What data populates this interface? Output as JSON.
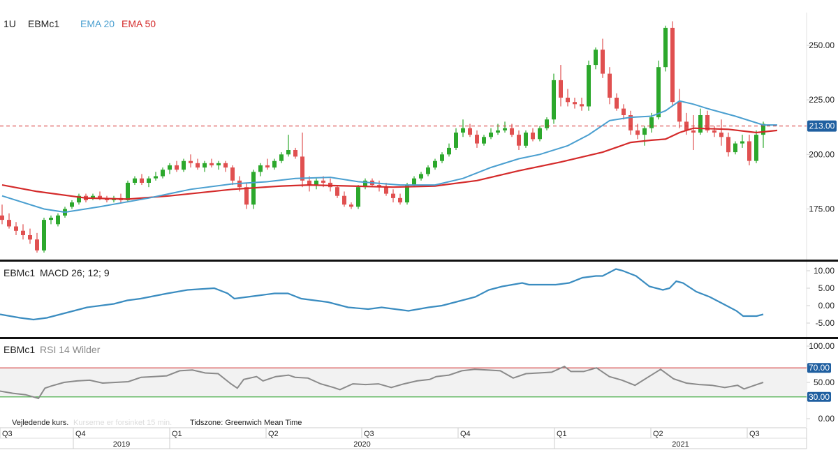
{
  "colors": {
    "up": "#2ca82c",
    "down": "#e05050",
    "ema20": "#4a9fd0",
    "ema50": "#d42a2a",
    "macd": "#3a8cc0",
    "rsi": "#8a8a8a",
    "rsi_upper": "#d44040",
    "rsi_lower": "#3aa83a",
    "last_price": "#1f5fa0"
  },
  "chart_data": [
    {
      "type": "candlestick",
      "interval_label": "1U",
      "symbol": "EBMc1",
      "legend": [
        {
          "label": "EMA 20",
          "color": "#4a9fd0"
        },
        {
          "label": "EMA 50",
          "color": "#d42a2a"
        }
      ],
      "ylim": [
        155,
        265
      ],
      "yticks": [
        "175.00",
        "200.00",
        "225.00",
        "250.00"
      ],
      "last_price_label": "213.00",
      "last_price": 213,
      "candles": [
        [
          172.0,
          177.0,
          168.0,
          170.0
        ],
        [
          170.0,
          173.0,
          166.0,
          167.0
        ],
        [
          167.0,
          169.0,
          163.0,
          165.0
        ],
        [
          165.0,
          168.0,
          161.0,
          163.0
        ],
        [
          163.0,
          166.0,
          159.0,
          161.0
        ],
        [
          161.0,
          164.0,
          155.0,
          156.0
        ],
        [
          156.0,
          171.0,
          155.0,
          170.0
        ],
        [
          170.0,
          172.0,
          168.0,
          171.0
        ],
        [
          168.0,
          173.0,
          167.0,
          172.0
        ],
        [
          172.0,
          176.0,
          171.0,
          175.0
        ],
        [
          176.0,
          179.0,
          175.0,
          178.0
        ],
        [
          178.0,
          182.0,
          177.0,
          181.0
        ],
        [
          181.0,
          182.0,
          178.0,
          179.0
        ],
        [
          180.0,
          182.0,
          179.0,
          181.0
        ],
        [
          181.0,
          183.0,
          179.0,
          180.0
        ],
        [
          180.0,
          181.0,
          178.0,
          179.0
        ],
        [
          179.0,
          181.0,
          178.0,
          180.0
        ],
        [
          180.0,
          182.0,
          178.0,
          179.0
        ],
        [
          179.0,
          188.0,
          178.0,
          187.0
        ],
        [
          187.0,
          190.0,
          186.0,
          189.0
        ],
        [
          189.0,
          191.0,
          186.0,
          187.0
        ],
        [
          187.0,
          190.0,
          185.0,
          189.0
        ],
        [
          189.0,
          192.0,
          188.0,
          190.0
        ],
        [
          190.0,
          194.0,
          189.0,
          193.0
        ],
        [
          193.0,
          196.0,
          191.0,
          195.0
        ],
        [
          195.0,
          197.0,
          192.0,
          193.0
        ],
        [
          193.0,
          198.0,
          192.0,
          197.0
        ],
        [
          197.0,
          200.0,
          194.0,
          196.0
        ],
        [
          196.0,
          198.0,
          193.0,
          194.0
        ],
        [
          194.0,
          197.0,
          192.0,
          196.0
        ],
        [
          196.0,
          198.0,
          194.0,
          195.0
        ],
        [
          195.0,
          197.0,
          193.0,
          196.0
        ],
        [
          196.0,
          197.0,
          192.0,
          194.0
        ],
        [
          194.0,
          195.0,
          186.0,
          188.0
        ],
        [
          188.0,
          190.0,
          183.0,
          185.0
        ],
        [
          185.0,
          187.0,
          175.0,
          177.0
        ],
        [
          177.0,
          193.0,
          175.0,
          192.0
        ],
        [
          192.0,
          196.0,
          190.0,
          195.0
        ],
        [
          195.0,
          198.0,
          193.0,
          194.0
        ],
        [
          194.0,
          198.0,
          193.0,
          197.0
        ],
        [
          197.0,
          201.0,
          196.0,
          200.0
        ],
        [
          200.0,
          209.0,
          199.0,
          202.0
        ],
        [
          202.0,
          203.0,
          198.0,
          199.0
        ],
        [
          199.0,
          210.0,
          185.0,
          188.0
        ],
        [
          188.0,
          190.0,
          183.0,
          186.0
        ],
        [
          186.0,
          189.0,
          184.0,
          188.0
        ],
        [
          188.0,
          190.0,
          185.0,
          187.0
        ],
        [
          187.0,
          189.0,
          183.0,
          185.0
        ],
        [
          185.0,
          186.0,
          180.0,
          181.0
        ],
        [
          181.0,
          183.0,
          176.0,
          177.0
        ],
        [
          177.0,
          178.0,
          175.0,
          176.0
        ],
        [
          176.0,
          186.0,
          175.0,
          185.0
        ],
        [
          185.0,
          189.0,
          184.0,
          188.0
        ],
        [
          188.0,
          189.0,
          185.0,
          186.0
        ],
        [
          186.0,
          188.0,
          183.0,
          185.0
        ],
        [
          185.0,
          187.0,
          181.0,
          182.0
        ],
        [
          182.0,
          184.0,
          178.0,
          180.0
        ],
        [
          180.0,
          182.0,
          177.0,
          178.0
        ],
        [
          178.0,
          187.0,
          177.0,
          186.0
        ],
        [
          186.0,
          190.0,
          185.0,
          189.0
        ],
        [
          189.0,
          192.0,
          188.0,
          191.0
        ],
        [
          191.0,
          195.0,
          190.0,
          194.0
        ],
        [
          194.0,
          198.0,
          193.0,
          197.0
        ],
        [
          197.0,
          201.0,
          196.0,
          200.0
        ],
        [
          200.0,
          205.0,
          199.0,
          203.0
        ],
        [
          203.0,
          212.0,
          202.0,
          210.0
        ],
        [
          210.0,
          216.0,
          208.0,
          212.0
        ],
        [
          212.0,
          214.0,
          208.0,
          209.0
        ],
        [
          209.0,
          211.0,
          203.0,
          205.0
        ],
        [
          205.0,
          209.0,
          204.0,
          208.0
        ],
        [
          208.0,
          212.0,
          207.0,
          210.0
        ],
        [
          210.0,
          214.0,
          209.0,
          211.0
        ],
        [
          211.0,
          215.0,
          210.0,
          212.0
        ],
        [
          212.0,
          214.0,
          208.0,
          209.0
        ],
        [
          209.0,
          211.0,
          202.0,
          204.0
        ],
        [
          204.0,
          211.0,
          203.0,
          210.0
        ],
        [
          210.0,
          212.0,
          206.0,
          207.0
        ],
        [
          207.0,
          213.0,
          206.0,
          212.0
        ],
        [
          212.0,
          217.0,
          211.0,
          216.0
        ],
        [
          216.0,
          237.0,
          214.0,
          234.0
        ],
        [
          234.0,
          241.0,
          222.0,
          226.0
        ],
        [
          226.0,
          230.0,
          222.0,
          224.0
        ],
        [
          224.0,
          226.0,
          221.0,
          223.0
        ],
        [
          223.0,
          226.0,
          220.0,
          222.0
        ],
        [
          222.0,
          243.0,
          220.0,
          241.0
        ],
        [
          241.0,
          249.0,
          239.0,
          248.0
        ],
        [
          248.0,
          253.0,
          235.0,
          237.0
        ],
        [
          237.0,
          240.0,
          223.0,
          226.0
        ],
        [
          226.0,
          228.0,
          220.0,
          221.0
        ],
        [
          221.0,
          223.0,
          216.0,
          218.0
        ],
        [
          218.0,
          220.0,
          209.0,
          211.0
        ],
        [
          211.0,
          214.0,
          207.0,
          209.0
        ],
        [
          209.0,
          213.0,
          204.0,
          212.0
        ],
        [
          212.0,
          219.0,
          210.0,
          217.0
        ],
        [
          217.0,
          243.0,
          216.0,
          240.0
        ],
        [
          240.0,
          259.0,
          238.0,
          258.0
        ],
        [
          258.0,
          261.0,
          222.0,
          224.0
        ],
        [
          224.0,
          230.0,
          212.0,
          215.0
        ],
        [
          215.0,
          219.0,
          209.0,
          211.0
        ],
        [
          211.0,
          218.0,
          202.0,
          210.0
        ],
        [
          210.0,
          221.0,
          209.0,
          218.0
        ],
        [
          218.0,
          220.0,
          210.0,
          211.0
        ],
        [
          211.0,
          213.0,
          208.0,
          210.0
        ],
        [
          210.0,
          216.0,
          204.0,
          208.0
        ],
        [
          208.0,
          210.0,
          199.0,
          201.0
        ],
        [
          201.0,
          206.0,
          200.0,
          205.0
        ],
        [
          205.0,
          209.0,
          203.0,
          206.0
        ],
        [
          206.0,
          209.0,
          195.0,
          197.0
        ],
        [
          197.0,
          211.0,
          196.0,
          209.0
        ],
        [
          209.0,
          215.0,
          203.0,
          214.0
        ]
      ],
      "ema20": [
        [
          0,
          181.0
        ],
        [
          6,
          175.0
        ],
        [
          9,
          173.5
        ],
        [
          14,
          176.0
        ],
        [
          21,
          180.0
        ],
        [
          27,
          184.0
        ],
        [
          33,
          186.5
        ],
        [
          38,
          187.5
        ],
        [
          42,
          189.0
        ],
        [
          47,
          189.5
        ],
        [
          51,
          187.5
        ],
        [
          57,
          186.0
        ],
        [
          62,
          186.0
        ],
        [
          66,
          189.0
        ],
        [
          70,
          194.0
        ],
        [
          74,
          198.0
        ],
        [
          77,
          200.0
        ],
        [
          81,
          204.0
        ],
        [
          84,
          209.0
        ],
        [
          87,
          215.5
        ],
        [
          90,
          217.0
        ],
        [
          93,
          217.5
        ],
        [
          95,
          220.0
        ],
        [
          97,
          224.5
        ],
        [
          99,
          223.0
        ],
        [
          101,
          221.0
        ],
        [
          105,
          217.5
        ],
        [
          109,
          213.5
        ],
        [
          111,
          213.5
        ]
      ],
      "ema50": [
        [
          0,
          186.0
        ],
        [
          5,
          183.0
        ],
        [
          12,
          180.0
        ],
        [
          18,
          179.5
        ],
        [
          24,
          181.0
        ],
        [
          33,
          184.0
        ],
        [
          40,
          185.5
        ],
        [
          44,
          186.0
        ],
        [
          50,
          185.5
        ],
        [
          56,
          185.0
        ],
        [
          62,
          185.5
        ],
        [
          68,
          188.0
        ],
        [
          74,
          192.5
        ],
        [
          80,
          196.5
        ],
        [
          86,
          201.0
        ],
        [
          90,
          205.5
        ],
        [
          93,
          206.5
        ],
        [
          95,
          207.0
        ],
        [
          97,
          210.0
        ],
        [
          99,
          212.0
        ],
        [
          104,
          211.5
        ],
        [
          108,
          210.0
        ],
        [
          111,
          211.0
        ]
      ]
    },
    {
      "type": "line",
      "symbol": "EBMc1",
      "label": "MACD 26; 12; 9",
      "ylim": [
        -8,
        12
      ],
      "yticks": [
        "-5.00",
        "0.00",
        "5.00",
        "10.00"
      ],
      "values": [
        [
          0,
          -2.5
        ],
        [
          3,
          -3.5
        ],
        [
          5,
          -4.0
        ],
        [
          7,
          -3.5
        ],
        [
          11,
          -1.5
        ],
        [
          13,
          -0.5
        ],
        [
          15,
          0.0
        ],
        [
          17,
          0.5
        ],
        [
          19,
          1.5
        ],
        [
          21,
          2.0
        ],
        [
          25,
          3.5
        ],
        [
          28,
          4.5
        ],
        [
          32,
          5.0
        ],
        [
          34,
          3.5
        ],
        [
          35,
          2.0
        ],
        [
          37,
          2.5
        ],
        [
          39,
          3.0
        ],
        [
          41,
          3.5
        ],
        [
          43,
          3.5
        ],
        [
          45,
          2.0
        ],
        [
          49,
          1.0
        ],
        [
          52,
          -0.5
        ],
        [
          55,
          -1.0
        ],
        [
          57,
          -0.5
        ],
        [
          61,
          -1.5
        ],
        [
          64,
          -0.5
        ],
        [
          66,
          0.0
        ],
        [
          68,
          1.0
        ],
        [
          71,
          2.5
        ],
        [
          73,
          4.5
        ],
        [
          75,
          5.5
        ],
        [
          78,
          6.5
        ],
        [
          79,
          6.0
        ],
        [
          83,
          6.0
        ],
        [
          85,
          6.5
        ],
        [
          87,
          8.0
        ],
        [
          89,
          8.5
        ],
        [
          90,
          8.5
        ],
        [
          92,
          10.5
        ],
        [
          93,
          10.0
        ],
        [
          95,
          8.5
        ],
        [
          97,
          5.5
        ],
        [
          99,
          4.5
        ],
        [
          100,
          5.0
        ],
        [
          101,
          7.0
        ],
        [
          102,
          6.5
        ],
        [
          104,
          4.0
        ],
        [
          106,
          2.5
        ],
        [
          108,
          0.5
        ],
        [
          110,
          -1.5
        ],
        [
          111,
          -3.0
        ],
        [
          113,
          -3.0
        ],
        [
          114,
          -2.5
        ]
      ]
    },
    {
      "type": "line",
      "symbol": "EBMc1",
      "label": "RSI 14 Wilder",
      "ylim": [
        0,
        100
      ],
      "yticks": [
        "0.00",
        "50.00",
        "100.00"
      ],
      "bands": {
        "upper": 70,
        "lower": 30,
        "upper_label": "70.00",
        "lower_label": "30.00"
      },
      "values": [
        [
          0,
          38
        ],
        [
          2,
          35
        ],
        [
          4,
          33
        ],
        [
          6,
          28
        ],
        [
          7,
          42
        ],
        [
          8,
          45
        ],
        [
          10,
          50
        ],
        [
          12,
          52
        ],
        [
          14,
          53
        ],
        [
          16,
          49
        ],
        [
          18,
          50
        ],
        [
          20,
          51
        ],
        [
          22,
          57
        ],
        [
          24,
          58
        ],
        [
          26,
          59
        ],
        [
          28,
          66
        ],
        [
          30,
          67
        ],
        [
          32,
          63
        ],
        [
          34,
          62
        ],
        [
          36,
          48
        ],
        [
          37,
          42
        ],
        [
          38,
          54
        ],
        [
          40,
          58
        ],
        [
          41,
          52
        ],
        [
          43,
          58
        ],
        [
          45,
          60
        ],
        [
          46,
          57
        ],
        [
          48,
          56
        ],
        [
          50,
          48
        ],
        [
          52,
          43
        ],
        [
          53,
          40
        ],
        [
          55,
          48
        ],
        [
          57,
          47
        ],
        [
          59,
          48
        ],
        [
          61,
          43
        ],
        [
          63,
          48
        ],
        [
          65,
          52
        ],
        [
          67,
          54
        ],
        [
          68,
          58
        ],
        [
          70,
          60
        ],
        [
          72,
          66
        ],
        [
          74,
          68
        ],
        [
          76,
          67
        ],
        [
          78,
          66
        ],
        [
          80,
          56
        ],
        [
          82,
          62
        ],
        [
          84,
          63
        ],
        [
          86,
          64
        ],
        [
          88,
          72
        ],
        [
          89,
          65
        ],
        [
          91,
          65
        ],
        [
          93,
          70
        ],
        [
          95,
          58
        ],
        [
          97,
          53
        ],
        [
          99,
          46
        ],
        [
          101,
          57
        ],
        [
          103,
          68
        ],
        [
          105,
          55
        ],
        [
          107,
          49
        ],
        [
          109,
          47
        ],
        [
          111,
          46
        ],
        [
          113,
          43
        ],
        [
          115,
          46
        ],
        [
          116,
          41
        ],
        [
          118,
          47
        ],
        [
          119,
          50
        ]
      ]
    }
  ],
  "time_axis": {
    "quarters": [
      "Q3",
      "Q4",
      "Q1",
      "Q2",
      "Q3",
      "Q4",
      "Q1",
      "Q2",
      "Q3"
    ],
    "years": [
      "2019",
      "2020",
      "2021"
    ]
  },
  "footer": {
    "note": "Vejledende kurs.",
    "note_faded": "Kurserne er forsinket 15 min.",
    "timezone": "Tidszone: Greenwich Mean Time"
  }
}
